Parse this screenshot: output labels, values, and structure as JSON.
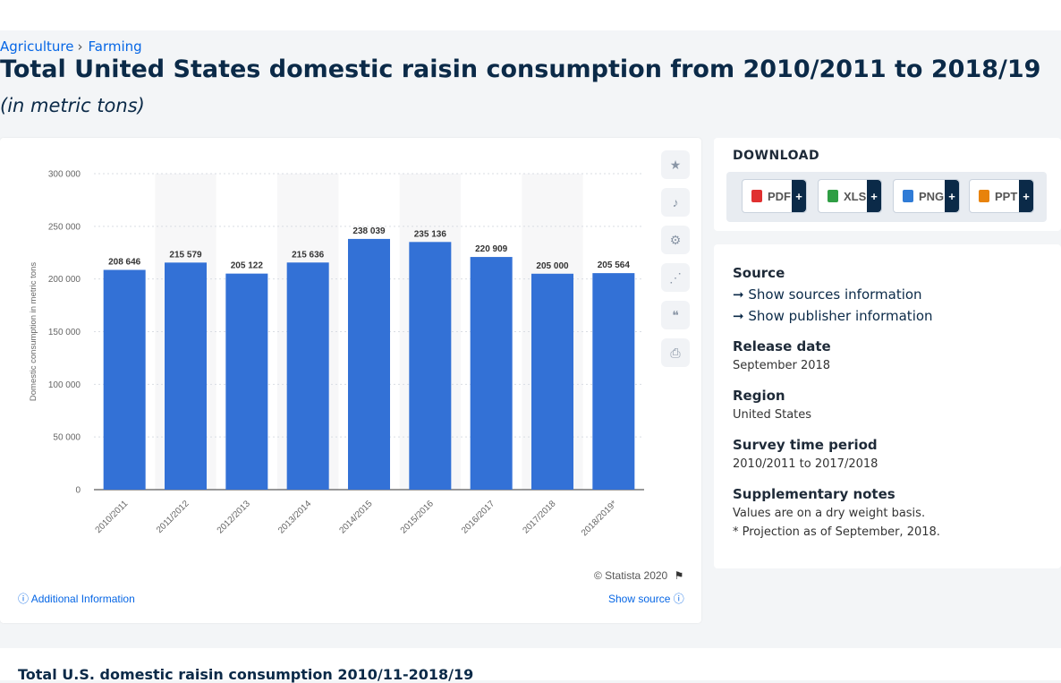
{
  "breadcrumb": {
    "items": [
      "Agriculture",
      "Farming"
    ]
  },
  "page": {
    "title": "Total United States domestic raisin consumption from 2010/2011 to 2018/19",
    "subtitle": "(in metric tons)",
    "copyright": "© Statista 2020",
    "additional_info": "Additional Information",
    "show_source": "Show source",
    "bottom_title": "Total U.S. domestic raisin consumption 2010/11-2018/19"
  },
  "download": {
    "title": "DOWNLOAD",
    "buttons": [
      {
        "label": "PDF",
        "icon": "pdf-icon",
        "color": "#e03030"
      },
      {
        "label": "XLS",
        "icon": "xls-icon",
        "color": "#2f9e44"
      },
      {
        "label": "PNG",
        "icon": "png-icon",
        "color": "#2f7bd6"
      },
      {
        "label": "PPT",
        "icon": "ppt-icon",
        "color": "#e8830c"
      }
    ],
    "plus": "+"
  },
  "tools": [
    "star-icon",
    "bell-icon",
    "gear-icon",
    "share-icon",
    "quote-icon",
    "print-icon"
  ],
  "info": {
    "source_heading": "Source",
    "show_sources": "Show sources information",
    "show_publisher": "Show publisher information",
    "release_heading": "Release date",
    "release_value": "September 2018",
    "region_heading": "Region",
    "region_value": "United States",
    "survey_heading": "Survey time period",
    "survey_value": "2010/2011 to 2017/2018",
    "notes_heading": "Supplementary notes",
    "notes_line1": "Values are on a dry weight basis.",
    "notes_line2": "* Projection as of September, 2018."
  },
  "chart_data": {
    "type": "bar",
    "categories": [
      "2010/2011",
      "2011/2012",
      "2012/2013",
      "2013/2014",
      "2014/2015",
      "2015/2016",
      "2016/2017",
      "2017/2018",
      "2018/2019*"
    ],
    "values": [
      208646,
      215579,
      205122,
      215636,
      238039,
      235136,
      220909,
      205000,
      205564
    ],
    "value_labels": [
      "208 646",
      "215 579",
      "205 122",
      "215 636",
      "238 039",
      "235 136",
      "220 909",
      "205 000",
      "205 564"
    ],
    "ylabel": "Domestic consumption in metric tons",
    "ylim": [
      0,
      300000
    ],
    "yticks": [
      0,
      50000,
      100000,
      150000,
      200000,
      250000,
      300000
    ],
    "ytick_labels": [
      "0",
      "50 000",
      "100 000",
      "150 000",
      "200 000",
      "250 000",
      "300 000"
    ],
    "bar_color": "#3371d6",
    "grid": true
  }
}
